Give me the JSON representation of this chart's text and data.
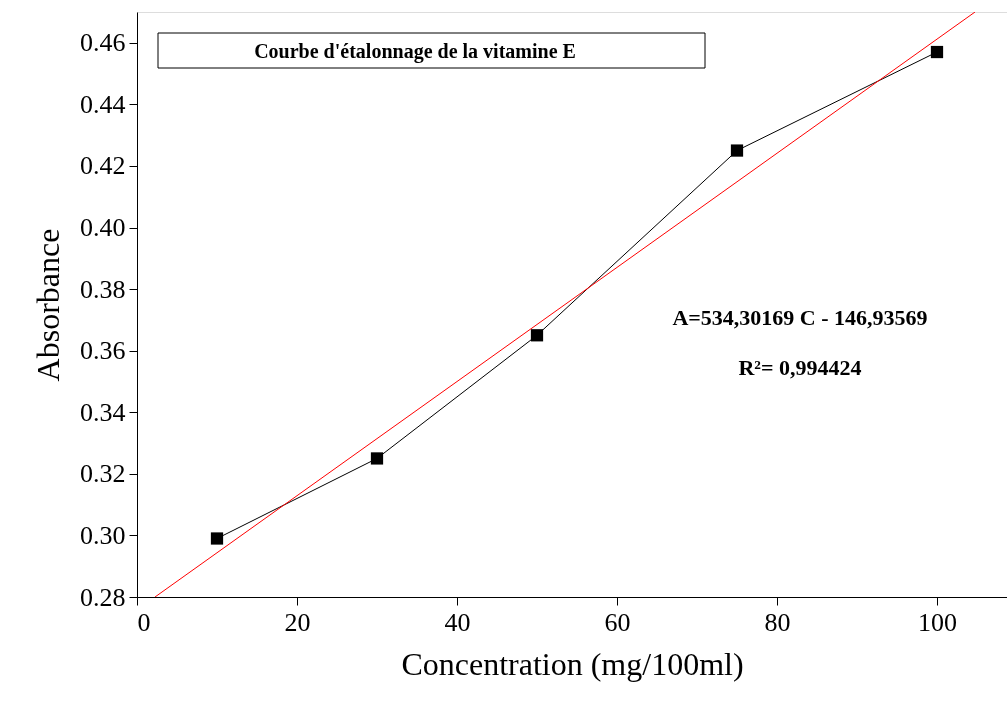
{
  "chart_data": {
    "type": "line",
    "xlabel": "Concentration (mg/100ml)",
    "ylabel": "Absorbance",
    "annotations": [
      "Courbe d'étalonnage de la vitamine E",
      "A=534,30169 C - 146,93569",
      "R²= 0,994424"
    ],
    "xlim": [
      0,
      108.75
    ],
    "xticks": [
      0,
      20,
      40,
      60,
      80,
      100
    ],
    "ylim": [
      0.28,
      0.47
    ],
    "yticks": [
      0.28,
      {
        "value": 0.3,
        "label": "0.30"
      },
      0.32,
      0.34,
      0.36,
      0.38,
      {
        "value": 0.4,
        "label": "0.40"
      },
      0.42,
      0.44,
      0.46
    ],
    "grid": false,
    "series": [
      {
        "color": "#000000",
        "marker": "square",
        "x": [
          10,
          30,
          50,
          75,
          100
        ],
        "values": [
          0.299,
          0.325,
          0.365,
          0.425,
          0.457
        ]
      },
      {
        "color": "#ff0000",
        "marker": "none",
        "x": [
          2.25,
          104.75
        ],
        "values": [
          0.28,
          0.47
        ]
      }
    ]
  }
}
